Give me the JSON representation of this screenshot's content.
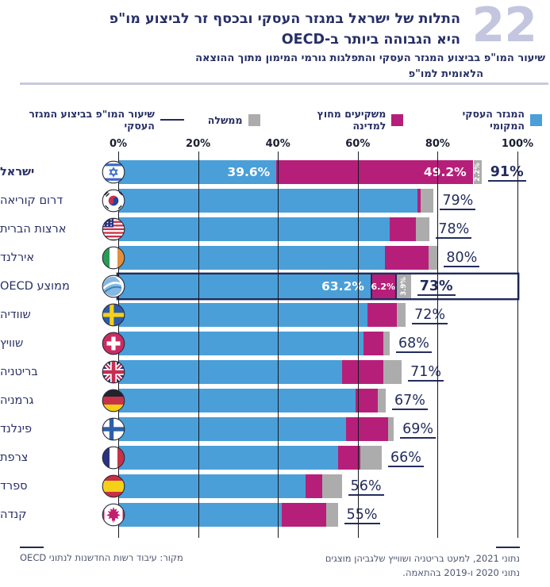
{
  "header": {
    "figure_number": "22",
    "title_line1": "התלות של ישראל במגזר העסקי ובכסף זר לביצוע מו\"פ",
    "title_line2": "היא הגבוהה ביותר ב-OECD",
    "subtitle_line1": "שיעור המו\"פ בביצוע המגזר העסקי והתפלגות גורמי המימון מתוך ההוצאה",
    "subtitle_line2": "הלאומית למו\"פ"
  },
  "legend": {
    "series": [
      {
        "key": "local_business",
        "label": "המגזר העסקי המקומי",
        "color": "#4A9FD8"
      },
      {
        "key": "foreign_investors",
        "label": "משקיעים מחוץ למדינה",
        "color": "#B61F79"
      },
      {
        "key": "government",
        "label": "ממשלה",
        "color": "#ACACAC"
      }
    ],
    "line": {
      "key": "business_share",
      "label": "שיעור המו\"פ בביצוע המגזר העסקי",
      "color": "#222B5C"
    }
  },
  "axis": {
    "ticks": [
      "0%",
      "20%",
      "40%",
      "60%",
      "80%",
      "100%"
    ],
    "min": 0,
    "max": 100
  },
  "chart_data": {
    "type": "bar",
    "orientation": "horizontal",
    "stacked": true,
    "series_names": [
      "המגזר העסקי המקומי",
      "משקיעים מחוץ למדינה",
      "ממשלה"
    ],
    "line_series_name": "שיעור המו\"פ בביצוע המגזר העסקי",
    "xlim": [
      0,
      100
    ],
    "rows": [
      {
        "country": "ישראל",
        "flag": "israel",
        "values": [
          39.6,
          49.2,
          2.2
        ],
        "labels": [
          "39.6%",
          "49.2%",
          "2.2%"
        ],
        "share": "91%",
        "value_bold": true,
        "label_bold": true
      },
      {
        "country": "דרום קוריאה",
        "flag": "south-korea",
        "values": [
          75.0,
          0.7,
          3.3
        ],
        "share": "79%"
      },
      {
        "country": "ארצות הברית",
        "flag": "usa",
        "values": [
          68.0,
          6.5,
          3.5
        ],
        "share": "78%"
      },
      {
        "country": "אירלנד",
        "flag": "ireland",
        "values": [
          66.8,
          11.0,
          2.2
        ],
        "share": "80%"
      },
      {
        "country": "ממוצע OECD",
        "flag": "oecd",
        "values": [
          63.2,
          6.2,
          3.9
        ],
        "labels": [
          "63.2%",
          "6.2%",
          "3.9%"
        ],
        "share": "73%",
        "value_bold": true,
        "highlight": true
      },
      {
        "country": "שוודיה",
        "flag": "sweden",
        "values": [
          62.4,
          7.4,
          2.2
        ],
        "share": "72%"
      },
      {
        "country": "שוויץ",
        "flag": "switzerland",
        "values": [
          61.4,
          5.0,
          1.6
        ],
        "share": "68%"
      },
      {
        "country": "בריטניה",
        "flag": "uk",
        "values": [
          56.0,
          10.5,
          4.5
        ],
        "share": "71%"
      },
      {
        "country": "גרמניה",
        "flag": "germany",
        "values": [
          59.5,
          5.5,
          2.0
        ],
        "share": "67%"
      },
      {
        "country": "פינלנד",
        "flag": "finland",
        "values": [
          57.0,
          10.5,
          1.5
        ],
        "share": "69%"
      },
      {
        "country": "צרפת",
        "flag": "france",
        "values": [
          55.0,
          5.6,
          5.4
        ],
        "share": "66%"
      },
      {
        "country": "ספרד",
        "flag": "spain",
        "values": [
          47.0,
          4.0,
          5.0
        ],
        "share": "56%"
      },
      {
        "country": "קנדה",
        "flag": "canada",
        "values": [
          41.0,
          11.0,
          3.0
        ],
        "share": "55%"
      }
    ]
  },
  "footer": {
    "note_line1": "נתוני 2021, למעט בריטניה ושווייץ שלגביהן מוצגים",
    "note_line2": "נתוני 2020 ו-2019 בהתאמה.",
    "source": "מקור: עיבוד רשות החדשנות לנתוני OECD"
  },
  "colors": {
    "bar_blue": "#4A9FD8",
    "bar_magenta": "#B61F79",
    "bar_gray": "#ACACAC",
    "navy_text": "#272F66",
    "figure_number": "#C4C5DE",
    "divider": "#C8CADB",
    "gridline": "#171722",
    "note_text": "#4E5670"
  }
}
